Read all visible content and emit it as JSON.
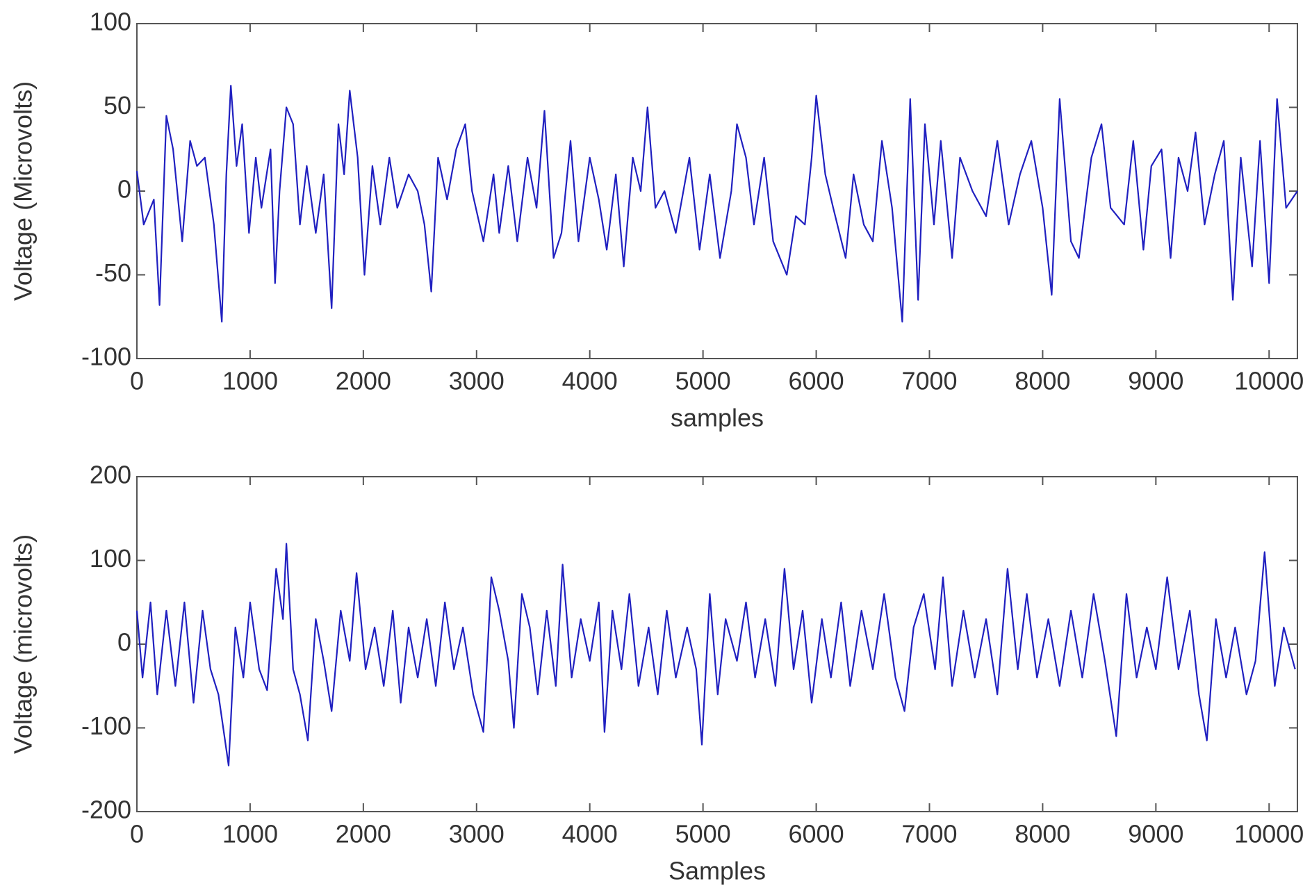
{
  "chart_data": [
    {
      "type": "line",
      "ylabel": "Voltage (Microvolts)",
      "xlabel": "samples",
      "color": "#2020c0",
      "xlim": [
        0,
        10250
      ],
      "ylim": [
        -100,
        100
      ],
      "xticks": [
        0,
        1000,
        2000,
        3000,
        4000,
        5000,
        6000,
        7000,
        8000,
        9000,
        10000
      ],
      "yticks": [
        -100,
        -50,
        0,
        50,
        100
      ],
      "x": [
        0,
        60,
        150,
        200,
        260,
        320,
        400,
        470,
        530,
        600,
        680,
        750,
        790,
        830,
        880,
        930,
        990,
        1050,
        1100,
        1180,
        1220,
        1260,
        1320,
        1380,
        1440,
        1500,
        1580,
        1650,
        1720,
        1780,
        1830,
        1880,
        1950,
        2010,
        2080,
        2150,
        2230,
        2300,
        2400,
        2480,
        2540,
        2600,
        2660,
        2740,
        2820,
        2900,
        2960,
        3060,
        3150,
        3200,
        3280,
        3360,
        3450,
        3530,
        3600,
        3680,
        3750,
        3830,
        3900,
        4000,
        4080,
        4150,
        4230,
        4300,
        4380,
        4450,
        4510,
        4580,
        4660,
        4760,
        4880,
        4970,
        5060,
        5150,
        5250,
        5300,
        5380,
        5450,
        5540,
        5620,
        5740,
        5820,
        5900,
        5960,
        6000,
        6080,
        6150,
        6260,
        6330,
        6420,
        6500,
        6580,
        6670,
        6760,
        6830,
        6900,
        6960,
        7040,
        7100,
        7200,
        7270,
        7380,
        7500,
        7600,
        7700,
        7800,
        7900,
        8000,
        8080,
        8150,
        8250,
        8320,
        8430,
        8520,
        8600,
        8720,
        8800,
        8890,
        8960,
        9050,
        9130,
        9200,
        9280,
        9350,
        9430,
        9520,
        9600,
        9680,
        9750,
        9850,
        9920,
        10000,
        10070,
        10150,
        10250
      ],
      "values": [
        12,
        -20,
        -5,
        -68,
        45,
        25,
        -30,
        30,
        15,
        20,
        -20,
        -78,
        10,
        63,
        15,
        40,
        -25,
        20,
        -10,
        25,
        -55,
        0,
        50,
        40,
        -20,
        15,
        -25,
        10,
        -70,
        40,
        10,
        60,
        20,
        -50,
        15,
        -20,
        20,
        -10,
        10,
        0,
        -20,
        -60,
        20,
        -5,
        25,
        40,
        0,
        -30,
        10,
        -25,
        15,
        -30,
        20,
        -10,
        48,
        -40,
        -25,
        30,
        -30,
        20,
        -5,
        -35,
        10,
        -45,
        20,
        0,
        50,
        -10,
        0,
        -25,
        20,
        -35,
        10,
        -40,
        0,
        40,
        20,
        -20,
        20,
        -30,
        -50,
        -15,
        -20,
        20,
        57,
        10,
        -10,
        -40,
        10,
        -20,
        -30,
        30,
        -10,
        -78,
        55,
        -65,
        40,
        -20,
        30,
        -40,
        20,
        0,
        -15,
        30,
        -20,
        10,
        30,
        -10,
        -62,
        55,
        -30,
        -40,
        20,
        40,
        -10,
        -20,
        30,
        -35,
        15,
        25,
        -40,
        20,
        0,
        35,
        -20,
        10,
        30,
        -65,
        20,
        -45,
        30,
        -55,
        55,
        -10,
        0
      ]
    },
    {
      "type": "line",
      "ylabel": "Voltage (microvolts)",
      "xlabel": "Samples",
      "color": "#2020c0",
      "xlim": [
        0,
        10250
      ],
      "ylim": [
        -200,
        200
      ],
      "xticks": [
        0,
        1000,
        2000,
        3000,
        4000,
        5000,
        6000,
        7000,
        8000,
        9000,
        10000
      ],
      "yticks": [
        -200,
        -100,
        0,
        100,
        200
      ],
      "x": [
        0,
        50,
        120,
        180,
        260,
        340,
        420,
        500,
        580,
        650,
        720,
        810,
        870,
        940,
        1000,
        1080,
        1150,
        1230,
        1290,
        1320,
        1380,
        1440,
        1510,
        1580,
        1650,
        1720,
        1800,
        1880,
        1940,
        2020,
        2100,
        2180,
        2260,
        2330,
        2400,
        2480,
        2560,
        2640,
        2720,
        2800,
        2880,
        2970,
        3060,
        3130,
        3200,
        3280,
        3330,
        3400,
        3470,
        3540,
        3620,
        3700,
        3760,
        3840,
        3920,
        4000,
        4080,
        4130,
        4200,
        4280,
        4350,
        4430,
        4520,
        4600,
        4680,
        4760,
        4860,
        4940,
        4990,
        5060,
        5130,
        5200,
        5300,
        5380,
        5460,
        5550,
        5640,
        5720,
        5800,
        5880,
        5960,
        6050,
        6130,
        6220,
        6300,
        6400,
        6500,
        6600,
        6700,
        6780,
        6860,
        6950,
        7050,
        7120,
        7200,
        7300,
        7400,
        7500,
        7600,
        7690,
        7780,
        7860,
        7950,
        8050,
        8150,
        8250,
        8350,
        8450,
        8550,
        8650,
        8740,
        8830,
        8920,
        9000,
        9100,
        9200,
        9300,
        9380,
        9450,
        9530,
        9620,
        9700,
        9800,
        9880,
        9960,
        10050,
        10130,
        10230
      ],
      "values": [
        40,
        -40,
        50,
        -60,
        40,
        -50,
        50,
        -70,
        40,
        -30,
        -60,
        -145,
        20,
        -40,
        50,
        -30,
        -55,
        90,
        30,
        120,
        -30,
        -60,
        -115,
        30,
        -20,
        -80,
        40,
        -20,
        85,
        -30,
        20,
        -50,
        40,
        -70,
        20,
        -40,
        30,
        -50,
        50,
        -30,
        20,
        -60,
        -105,
        80,
        40,
        -20,
        -100,
        60,
        20,
        -60,
        40,
        -50,
        95,
        -40,
        30,
        -20,
        50,
        -105,
        40,
        -30,
        60,
        -50,
        20,
        -60,
        40,
        -40,
        20,
        -30,
        -120,
        60,
        -60,
        30,
        -20,
        50,
        -40,
        30,
        -50,
        90,
        -30,
        40,
        -70,
        30,
        -40,
        50,
        -50,
        40,
        -30,
        60,
        -40,
        -80,
        20,
        60,
        -30,
        80,
        -50,
        40,
        -40,
        30,
        -60,
        90,
        -30,
        60,
        -40,
        30,
        -50,
        40,
        -40,
        60,
        -20,
        -110,
        60,
        -40,
        20,
        -30,
        80,
        -30,
        40,
        -60,
        -115,
        30,
        -40,
        20,
        -60,
        -20,
        110,
        -50,
        20,
        -30
      ]
    }
  ]
}
